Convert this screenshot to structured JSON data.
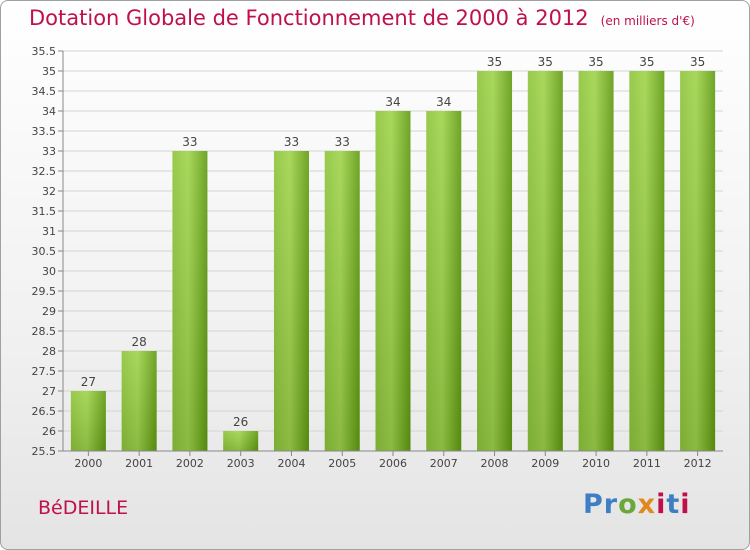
{
  "header": {
    "title": "Dotation Globale de Fonctionnement de 2000 à 2012",
    "subtitle": "(en milliers d'€)"
  },
  "footer": {
    "commune": "BéDEILLE",
    "logo": "Proxiti"
  },
  "colors": {
    "title": "#c0104a",
    "bar_light": "#9fd34a",
    "bar_dark": "#5f9b10",
    "grid": "#d0d0d0"
  },
  "chart_data": {
    "type": "bar",
    "title": "Dotation Globale de Fonctionnement de 2000 à 2012",
    "subtitle": "(en milliers d'€)",
    "xlabel": "",
    "ylabel": "",
    "categories": [
      "2000",
      "2001",
      "2002",
      "2003",
      "2004",
      "2005",
      "2006",
      "2007",
      "2008",
      "2009",
      "2010",
      "2011",
      "2012"
    ],
    "values": [
      27,
      28,
      33,
      26,
      33,
      33,
      34,
      34,
      35,
      35,
      35,
      35,
      35
    ],
    "ylim": [
      25.5,
      35.5
    ],
    "yticks": [
      "25.5",
      "26",
      "26.5",
      "27",
      "27.5",
      "28",
      "28.5",
      "29",
      "29.5",
      "30",
      "30.5",
      "31",
      "31.5",
      "32",
      "32.5",
      "33",
      "33.5",
      "34",
      "34.5",
      "35",
      "35.5"
    ],
    "grid": true,
    "legend": "none"
  }
}
